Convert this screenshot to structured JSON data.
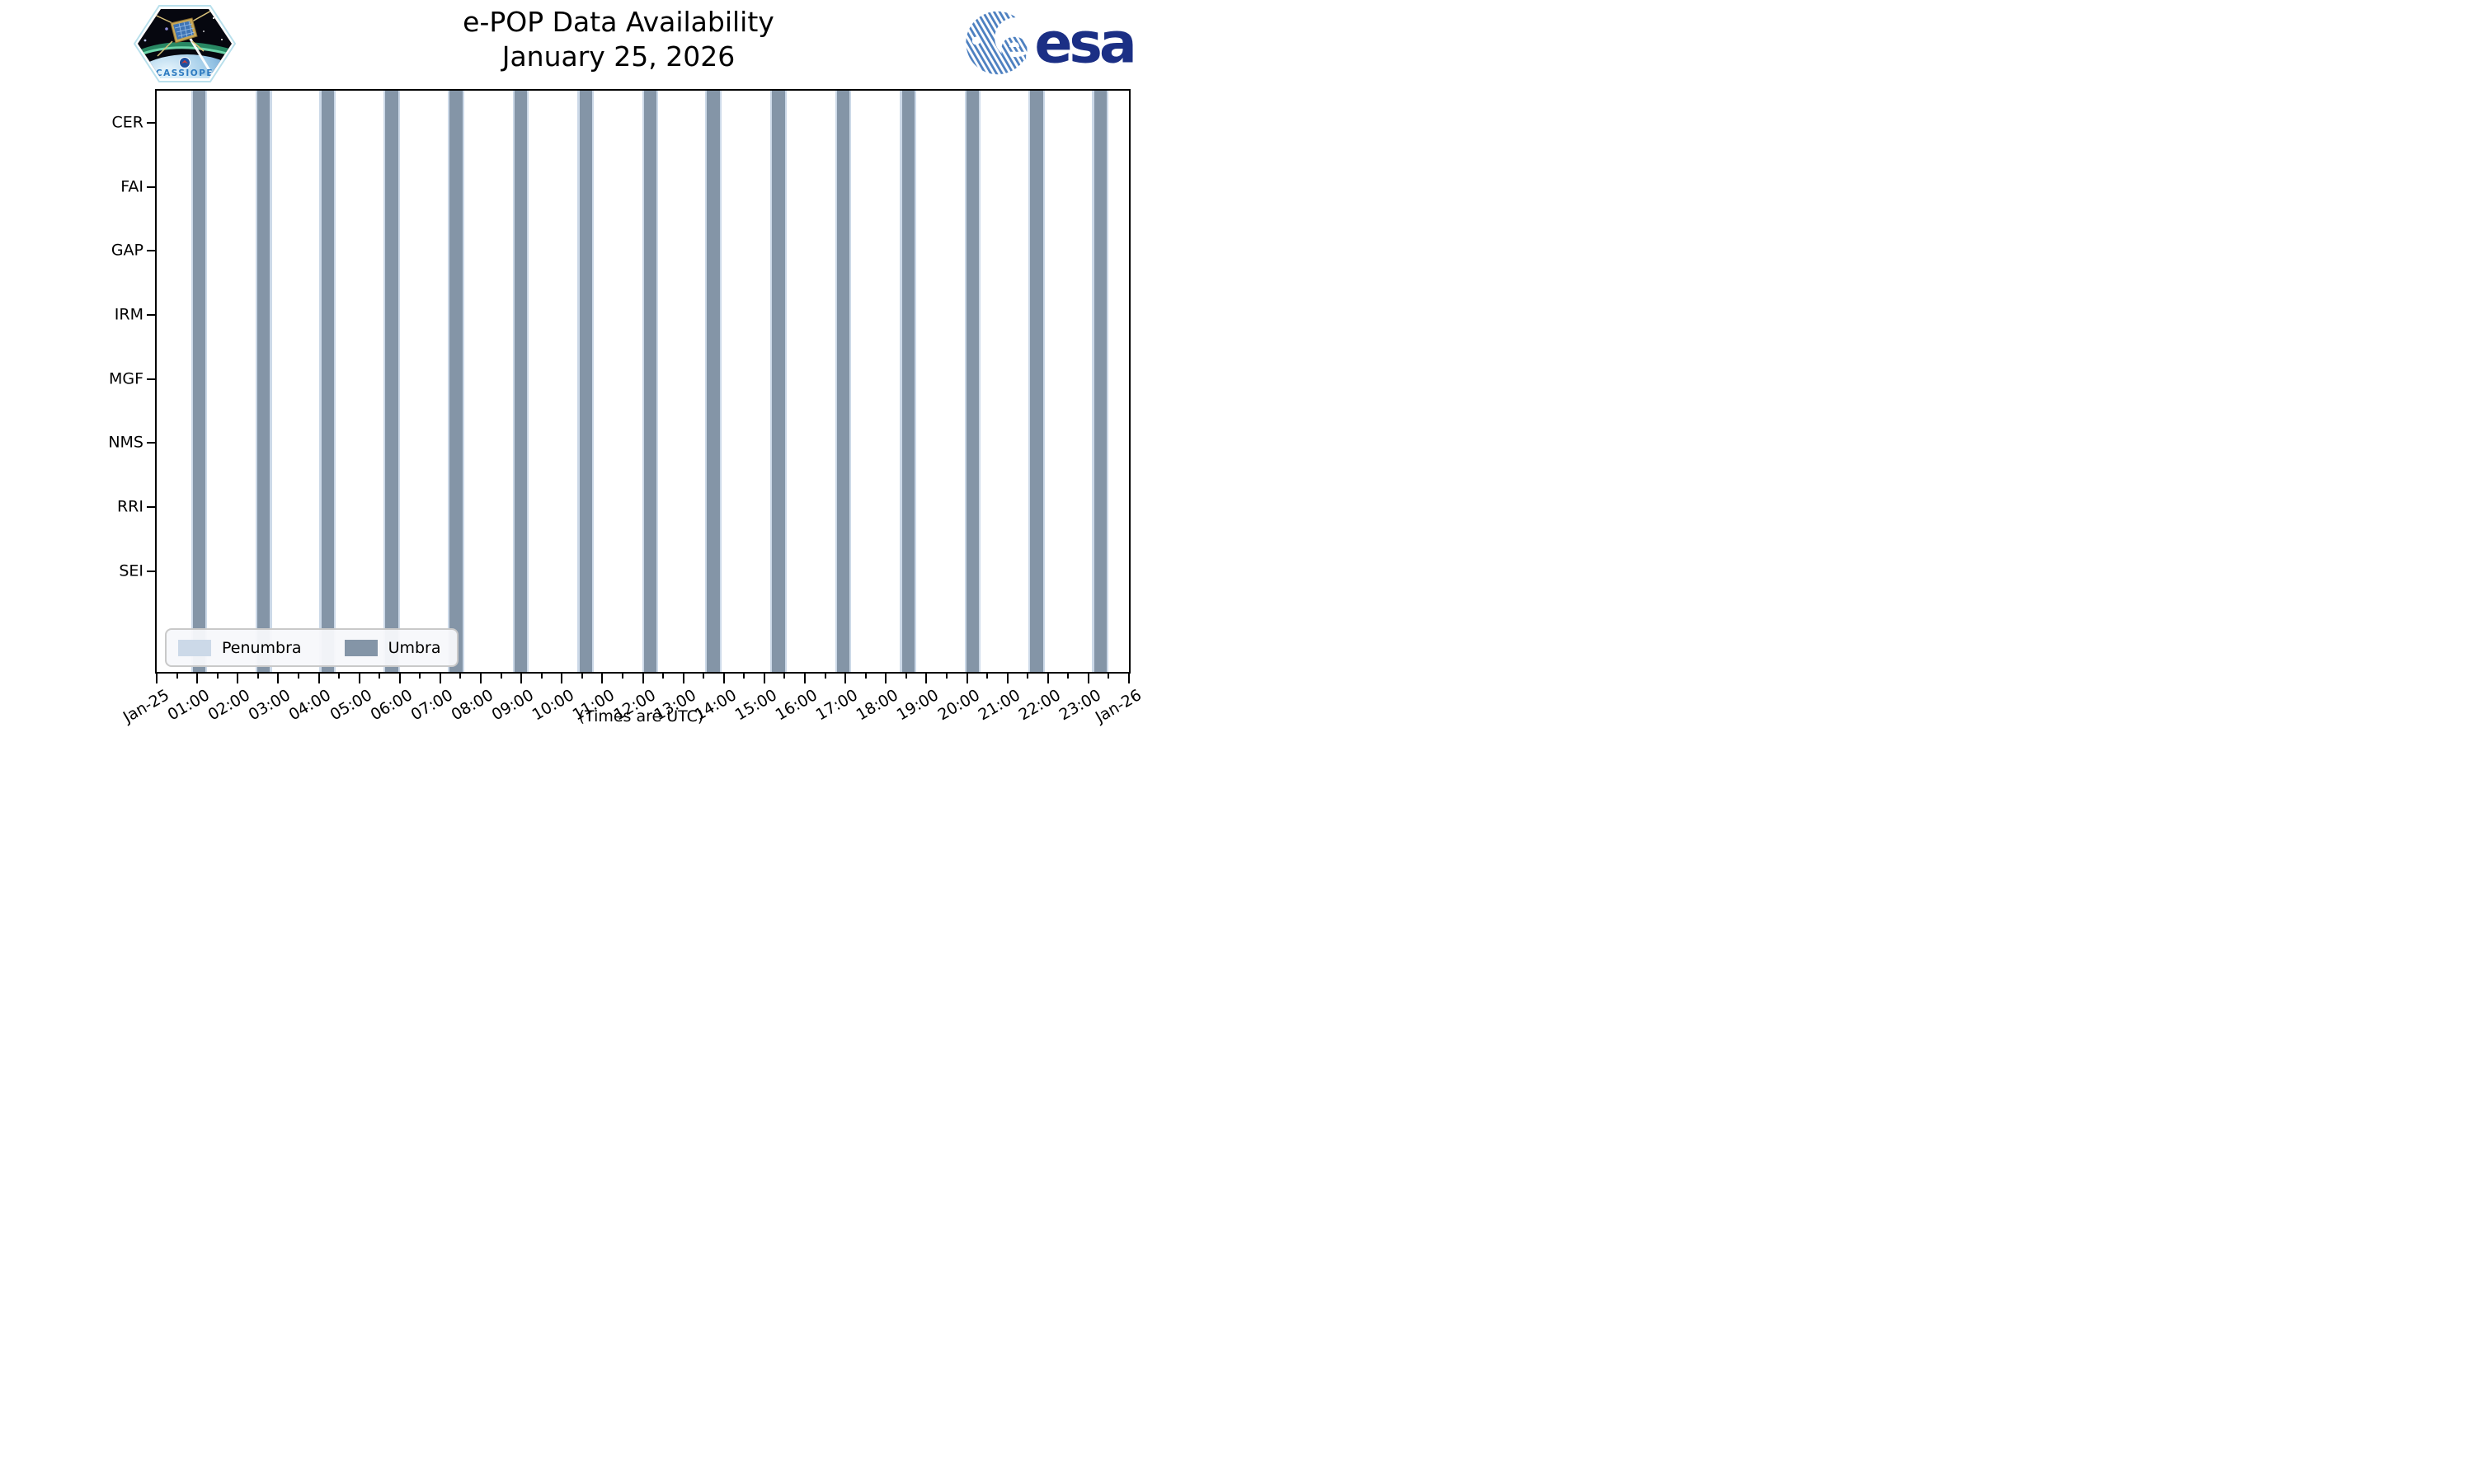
{
  "header": {
    "title_line1": "e-POP Data Availability",
    "title_line2": "January 25, 2026",
    "cassiope_patch_text": "CASSIOPE",
    "esa_logo_text": "esa"
  },
  "footer": {
    "note": "(Times are UTC)"
  },
  "chart_data": {
    "type": "timeline",
    "title": "e-POP Data Availability",
    "subtitle": "January 25, 2026",
    "x_axis": {
      "start_label": "Jan-25",
      "end_label": "Jan-26",
      "span_hours": 24,
      "tick_labels": [
        "Jan-25",
        "01:00",
        "02:00",
        "03:00",
        "04:00",
        "05:00",
        "06:00",
        "07:00",
        "08:00",
        "09:00",
        "10:00",
        "11:00",
        "12:00",
        "13:00",
        "14:00",
        "15:00",
        "16:00",
        "17:00",
        "18:00",
        "19:00",
        "20:00",
        "21:00",
        "22:00",
        "23:00",
        "Jan-26"
      ],
      "minor_tick_interval_hours": 0.5,
      "note": "(Times are UTC)"
    },
    "y_axis": {
      "instruments": [
        "CER",
        "FAI",
        "GAP",
        "IRM",
        "MGF",
        "NMS",
        "RRI",
        "SEI"
      ]
    },
    "legend": [
      {
        "label": "Penumbra",
        "color": "#ccd9e8"
      },
      {
        "label": "Umbra",
        "color": "#8495a7"
      }
    ],
    "eclipse_events": {
      "umbra_center_times_utc": [
        "01:03",
        "02:38",
        "04:13",
        "05:48",
        "07:23",
        "08:59",
        "10:35",
        "12:11",
        "13:44",
        "15:21",
        "16:57",
        "18:33",
        "20:08",
        "21:43",
        "23:17"
      ],
      "umbra_center_hours": [
        1.05,
        2.64,
        4.22,
        5.8,
        7.39,
        8.99,
        10.59,
        12.18,
        13.74,
        15.35,
        16.95,
        18.55,
        20.14,
        21.72,
        23.29
      ],
      "umbra_duration_hours": 0.31,
      "penumbra_duration_hours": 0.045
    },
    "colors": {
      "umbra": "#8495a7",
      "penumbra": "#ccd9e8"
    },
    "layout": {
      "y_first_fraction": 0.0553,
      "y_step_fraction": 0.1102,
      "label_rotation_deg": 30
    }
  }
}
